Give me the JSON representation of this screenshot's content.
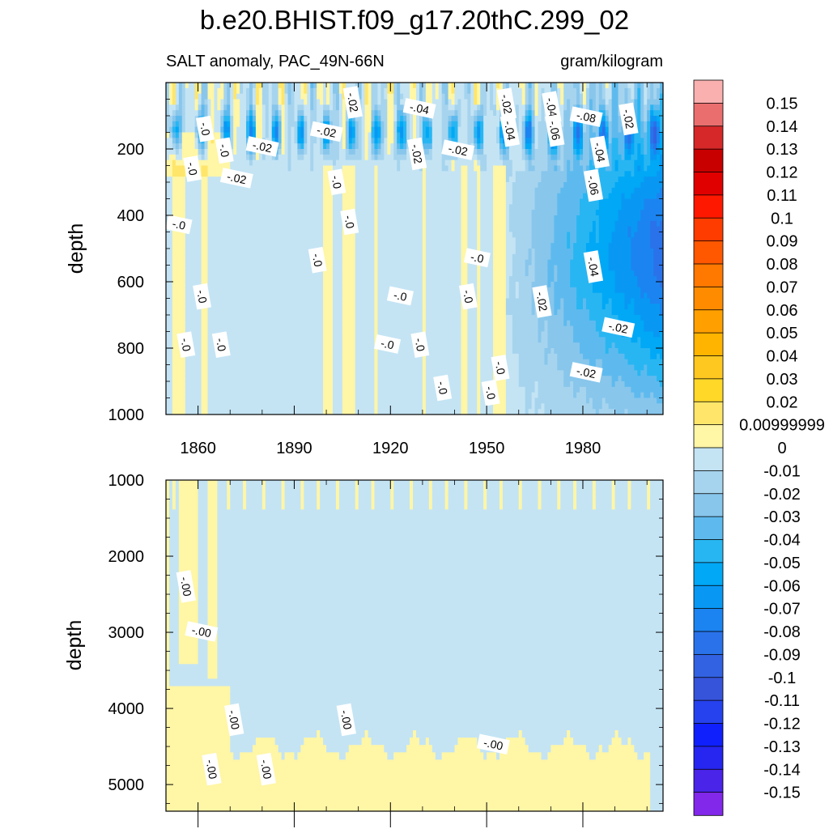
{
  "chart_data": {
    "type": "heatmap",
    "title": "b.e20.BHIST.f09_g17.20thC.299_02",
    "subtitle_left": "SALT anomaly, PAC_49N-66N",
    "subtitle_right": "gram/kilogram",
    "xlim": [
      1850,
      2005
    ],
    "xticks": [
      1860,
      1890,
      1920,
      1950,
      1980
    ],
    "xtick_labels": [
      "1860",
      "1890",
      "1920",
      "1950",
      "1980"
    ],
    "panels": [
      {
        "name": "upper",
        "ylabel": "depth",
        "ylim": [
          0,
          1000
        ],
        "yticks": [
          200,
          400,
          600,
          800,
          1000
        ],
        "ytick_labels": [
          "200",
          "400",
          "600",
          "800",
          "1000"
        ],
        "contour_labels": [
          {
            "text": "-.02",
            "x": 1908,
            "y": 60
          },
          {
            "text": "-.04",
            "x": 1929,
            "y": 80
          },
          {
            "text": "-.02",
            "x": 1956,
            "y": 65
          },
          {
            "text": "-.04",
            "x": 1970,
            "y": 75
          },
          {
            "text": "-.08",
            "x": 1981,
            "y": 105
          },
          {
            "text": "-.02",
            "x": 1994,
            "y": 110
          },
          {
            "text": "-.0",
            "x": 1862,
            "y": 140
          },
          {
            "text": "-.02",
            "x": 1900,
            "y": 150
          },
          {
            "text": "-.04",
            "x": 1957,
            "y": 145
          },
          {
            "text": "-.06",
            "x": 1971,
            "y": 145
          },
          {
            "text": "-.02",
            "x": 1880,
            "y": 195
          },
          {
            "text": "-.0",
            "x": 1868,
            "y": 205
          },
          {
            "text": "-.02",
            "x": 1928,
            "y": 215
          },
          {
            "text": "-.02",
            "x": 1941,
            "y": 205
          },
          {
            "text": "-.04",
            "x": 1985,
            "y": 210
          },
          {
            "text": "-.0",
            "x": 1858,
            "y": 260
          },
          {
            "text": "-.02",
            "x": 1872,
            "y": 290
          },
          {
            "text": "-.0",
            "x": 1903,
            "y": 300
          },
          {
            "text": "-.06",
            "x": 1983,
            "y": 310
          },
          {
            "text": "-.0",
            "x": 1854,
            "y": 430
          },
          {
            "text": "-.0",
            "x": 1907,
            "y": 420
          },
          {
            "text": "-.0",
            "x": 1897,
            "y": 535
          },
          {
            "text": "-.0",
            "x": 1947,
            "y": 530
          },
          {
            "text": "-.04",
            "x": 1983,
            "y": 555
          },
          {
            "text": "-.0",
            "x": 1861,
            "y": 645
          },
          {
            "text": "-.0",
            "x": 1923,
            "y": 645
          },
          {
            "text": "-.0",
            "x": 1944,
            "y": 645
          },
          {
            "text": "-.02",
            "x": 1967,
            "y": 660
          },
          {
            "text": "-.02",
            "x": 1991,
            "y": 740
          },
          {
            "text": "-.0",
            "x": 1856,
            "y": 790
          },
          {
            "text": "-.0",
            "x": 1867,
            "y": 790
          },
          {
            "text": "-.0",
            "x": 1919,
            "y": 790
          },
          {
            "text": "-.0",
            "x": 1929,
            "y": 790
          },
          {
            "text": "-.0",
            "x": 1954,
            "y": 860
          },
          {
            "text": "-.02",
            "x": 1981,
            "y": 875
          },
          {
            "text": "-.0",
            "x": 1936,
            "y": 920
          },
          {
            "text": "-.0",
            "x": 1951,
            "y": 935
          }
        ]
      },
      {
        "name": "lower",
        "ylabel": "depth",
        "ylim": [
          1000,
          5350
        ],
        "yticks": [
          1000,
          2000,
          3000,
          4000,
          5000
        ],
        "ytick_labels": [
          "1000",
          "2000",
          "3000",
          "4000",
          "5000"
        ],
        "contour_labels": [
          {
            "text": "-.00",
            "x": 1856,
            "y": 2400
          },
          {
            "text": "-.00",
            "x": 1861,
            "y": 3000
          },
          {
            "text": "-.00",
            "x": 1871,
            "y": 4150
          },
          {
            "text": "-.00",
            "x": 1906,
            "y": 4150
          },
          {
            "text": "-.00",
            "x": 1952,
            "y": 4480
          },
          {
            "text": "-.00",
            "x": 1864,
            "y": 4800
          },
          {
            "text": "-.00",
            "x": 1881,
            "y": 4800
          }
        ]
      }
    ],
    "colorbar": {
      "labels": [
        "0.15",
        "0.14",
        "0.13",
        "0.12",
        "0.11",
        "0.1",
        "0.09",
        "0.08",
        "0.07",
        "0.06",
        "0.05",
        "0.04",
        "0.03",
        "0.02",
        "0.00999999",
        "0",
        "-0.01",
        "-0.02",
        "-0.03",
        "-0.04",
        "-0.05",
        "-0.06",
        "-0.07",
        "-0.08",
        "-0.09",
        "-0.1",
        "-0.11",
        "-0.12",
        "-0.13",
        "-0.14",
        "-0.15"
      ],
      "colors": [
        "#fbb0b0",
        "#ea6e6e",
        "#d62828",
        "#c80000",
        "#e00000",
        "#ff1800",
        "#ff3c00",
        "#ff5800",
        "#ff7800",
        "#ff8c00",
        "#ffa000",
        "#ffb400",
        "#ffc820",
        "#ffd828",
        "#ffe66a",
        "#fff6a6",
        "#c4e4f4",
        "#a6d4ee",
        "#88c6ec",
        "#5ebaee",
        "#28b6f2",
        "#00a8f6",
        "#0898f4",
        "#1c84f0",
        "#2a72ea",
        "#3262e2",
        "#3654da",
        "#2642ee",
        "#1020fc",
        "#2626f0",
        "#4a24e8",
        "#8228ea"
      ]
    }
  }
}
